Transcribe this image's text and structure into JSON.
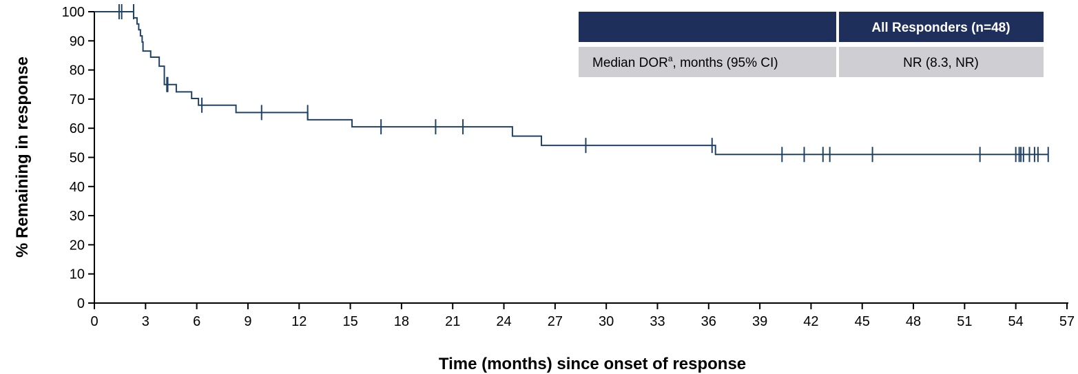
{
  "chart_data": {
    "type": "line",
    "xlabel": "Time (months) since onset of response",
    "ylabel": "% Remaining in response",
    "xlim": [
      0,
      57
    ],
    "ylim": [
      0,
      100
    ],
    "x_ticks": [
      0,
      3,
      6,
      9,
      12,
      15,
      18,
      21,
      24,
      27,
      30,
      33,
      36,
      39,
      42,
      45,
      48,
      51,
      54,
      57
    ],
    "y_ticks": [
      0,
      10,
      20,
      30,
      40,
      50,
      60,
      70,
      80,
      90,
      100
    ],
    "grid": false,
    "line_color": "#1f4266",
    "series": [
      {
        "steps": [
          [
            0,
            100
          ],
          [
            2.3,
            100
          ],
          [
            2.3,
            97.9
          ],
          [
            2.5,
            97.9
          ],
          [
            2.5,
            95.8
          ],
          [
            2.6,
            95.8
          ],
          [
            2.6,
            93.8
          ],
          [
            2.7,
            93.8
          ],
          [
            2.7,
            91.7
          ],
          [
            2.8,
            91.7
          ],
          [
            2.8,
            89.6
          ],
          [
            2.85,
            89.6
          ],
          [
            2.85,
            86.5
          ],
          [
            3.3,
            86.5
          ],
          [
            3.3,
            84.4
          ],
          [
            3.8,
            84.4
          ],
          [
            3.8,
            81.3
          ],
          [
            4.1,
            81.3
          ],
          [
            4.1,
            75
          ],
          [
            4.8,
            75
          ],
          [
            4.8,
            72.5
          ],
          [
            5.7,
            72.5
          ],
          [
            5.7,
            70.2
          ],
          [
            6.1,
            70.2
          ],
          [
            6.1,
            67.9
          ],
          [
            8.3,
            67.9
          ],
          [
            8.3,
            65.4
          ],
          [
            12.5,
            65.4
          ],
          [
            12.5,
            62.9
          ],
          [
            15.1,
            62.9
          ],
          [
            15.1,
            60.5
          ],
          [
            24.5,
            60.5
          ],
          [
            24.5,
            57.3
          ],
          [
            26.2,
            57.3
          ],
          [
            26.2,
            54.1
          ],
          [
            36.4,
            54.1
          ],
          [
            36.4,
            51
          ],
          [
            55.9,
            51
          ]
        ],
        "censored": [
          [
            1.45,
            100
          ],
          [
            1.6,
            100
          ],
          [
            2.3,
            100
          ],
          [
            4.25,
            75
          ],
          [
            4.3,
            75
          ],
          [
            6.3,
            67.9
          ],
          [
            9.8,
            65.4
          ],
          [
            12.5,
            65.4
          ],
          [
            16.8,
            60.5
          ],
          [
            20.0,
            60.5
          ],
          [
            21.6,
            60.5
          ],
          [
            28.8,
            54.1
          ],
          [
            36.2,
            54.1
          ],
          [
            40.3,
            51
          ],
          [
            41.6,
            51
          ],
          [
            42.7,
            51
          ],
          [
            43.1,
            51
          ],
          [
            45.6,
            51
          ],
          [
            51.9,
            51
          ],
          [
            54.0,
            51
          ],
          [
            54.2,
            51
          ],
          [
            54.3,
            51
          ],
          [
            54.45,
            51
          ],
          [
            54.8,
            51
          ],
          [
            55.1,
            51
          ],
          [
            55.3,
            51
          ],
          [
            55.9,
            51
          ]
        ]
      }
    ],
    "table": {
      "header_col1": "",
      "header_col2": "All Responders (n=48)",
      "row_label": "Median DOR",
      "row_label_sup": "a",
      "row_label_rest": ", months (95% CI)",
      "row_value": "NR (8.3, NR)",
      "header_color": "#1e2f5c",
      "row_color": "#cfcfd3"
    }
  }
}
